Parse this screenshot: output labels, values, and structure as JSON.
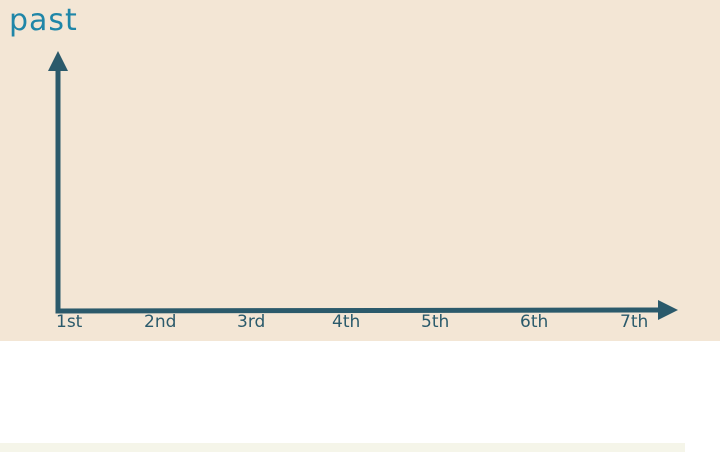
{
  "diagram": {
    "y_axis_label": "past",
    "x_tick_labels": [
      "1st",
      "2nd",
      "3rd",
      "4th",
      "5th",
      "6th",
      "7th"
    ],
    "colors": {
      "background_panel": "#f3e6d5",
      "axis_line": "#2b5a6b",
      "label_blue": "#1f86a8",
      "tick_label": "#2a5a6b",
      "bottom_strip": "#f5f5e9"
    }
  }
}
